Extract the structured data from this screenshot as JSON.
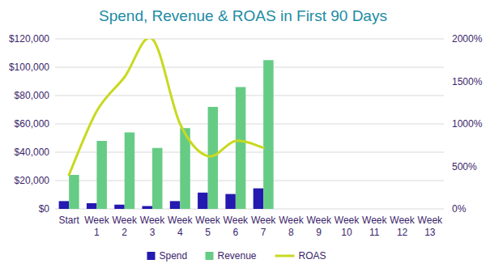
{
  "chart_data": {
    "type": "bar",
    "title": "Spend, Revenue & ROAS in First 90 Days",
    "categories": [
      "Start",
      "Week 1",
      "Week 2",
      "Week 3",
      "Week 4",
      "Week 5",
      "Week 6",
      "Week 7",
      "Week 8",
      "Week 9",
      "Week 10",
      "Week 11",
      "Week 12",
      "Week 13"
    ],
    "series": [
      {
        "name": "Spend",
        "type": "bar",
        "color": "#2419b0",
        "values": [
          5500,
          4000,
          3000,
          2000,
          5500,
          11500,
          10500,
          14500,
          null,
          null,
          null,
          null,
          null,
          null
        ]
      },
      {
        "name": "Revenue",
        "type": "bar",
        "color": "#66cc85",
        "values": [
          24000,
          48000,
          54000,
          43000,
          57000,
          72000,
          86000,
          105000,
          null,
          null,
          null,
          null,
          null,
          null
        ]
      },
      {
        "name": "ROAS",
        "type": "line",
        "axis": "y2",
        "color": "#c8d920",
        "line_style": "smooth",
        "values": [
          400,
          1150,
          1550,
          2000,
          1000,
          620,
          800,
          720,
          null,
          null,
          null,
          null,
          null,
          null
        ]
      }
    ],
    "ylim": [
      0,
      120000
    ],
    "yticks": [
      {
        "value": 0,
        "label": "$0"
      },
      {
        "value": 20000,
        "label": "$20,000"
      },
      {
        "value": 40000,
        "label": "$40,000"
      },
      {
        "value": 60000,
        "label": "$60,000"
      },
      {
        "value": 80000,
        "label": "$80,000"
      },
      {
        "value": 100000,
        "label": "$100,000"
      },
      {
        "value": 120000,
        "label": "$120,000"
      }
    ],
    "y2lim": [
      0,
      2000
    ],
    "y2ticks": [
      {
        "value": 0,
        "label": "0%"
      },
      {
        "value": 500,
        "label": "500%"
      },
      {
        "value": 1000,
        "label": "1000%"
      },
      {
        "value": 1500,
        "label": "1500%"
      },
      {
        "value": 2000,
        "label": "2000%"
      }
    ],
    "grid": true,
    "legend": "bottom"
  }
}
